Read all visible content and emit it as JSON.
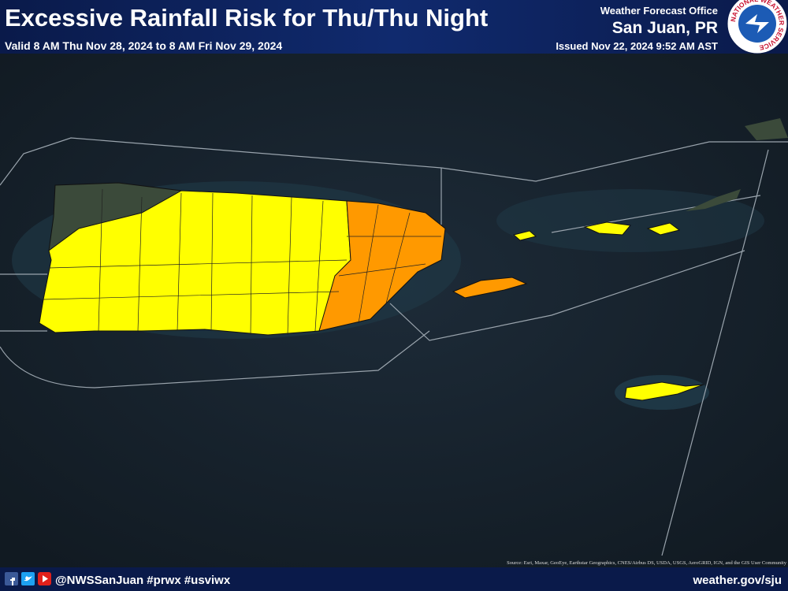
{
  "header": {
    "title": "Excessive Rainfall Risk for Thu/Thu Night",
    "valid": "Valid 8 AM Thu Nov 28, 2024 to 8 AM Fri Nov 29, 2024",
    "office_label": "Weather Forecast Office",
    "office": "San Juan, PR",
    "issued": "Issued Nov 22, 2024 9:52 AM AST"
  },
  "logo": {
    "text": "NATIONAL WEATHER SERVICE"
  },
  "map": {
    "source": "Source: Esri, Maxar, GeoEye, Earthstar Geographics, CNES/Airbus DS, USDA, USGS, AeroGRID, IGN, and the GIS User Community"
  },
  "footer": {
    "social": "@NWSSanJuan #prwx #usviwx",
    "website": "weather.gov/sju"
  }
}
